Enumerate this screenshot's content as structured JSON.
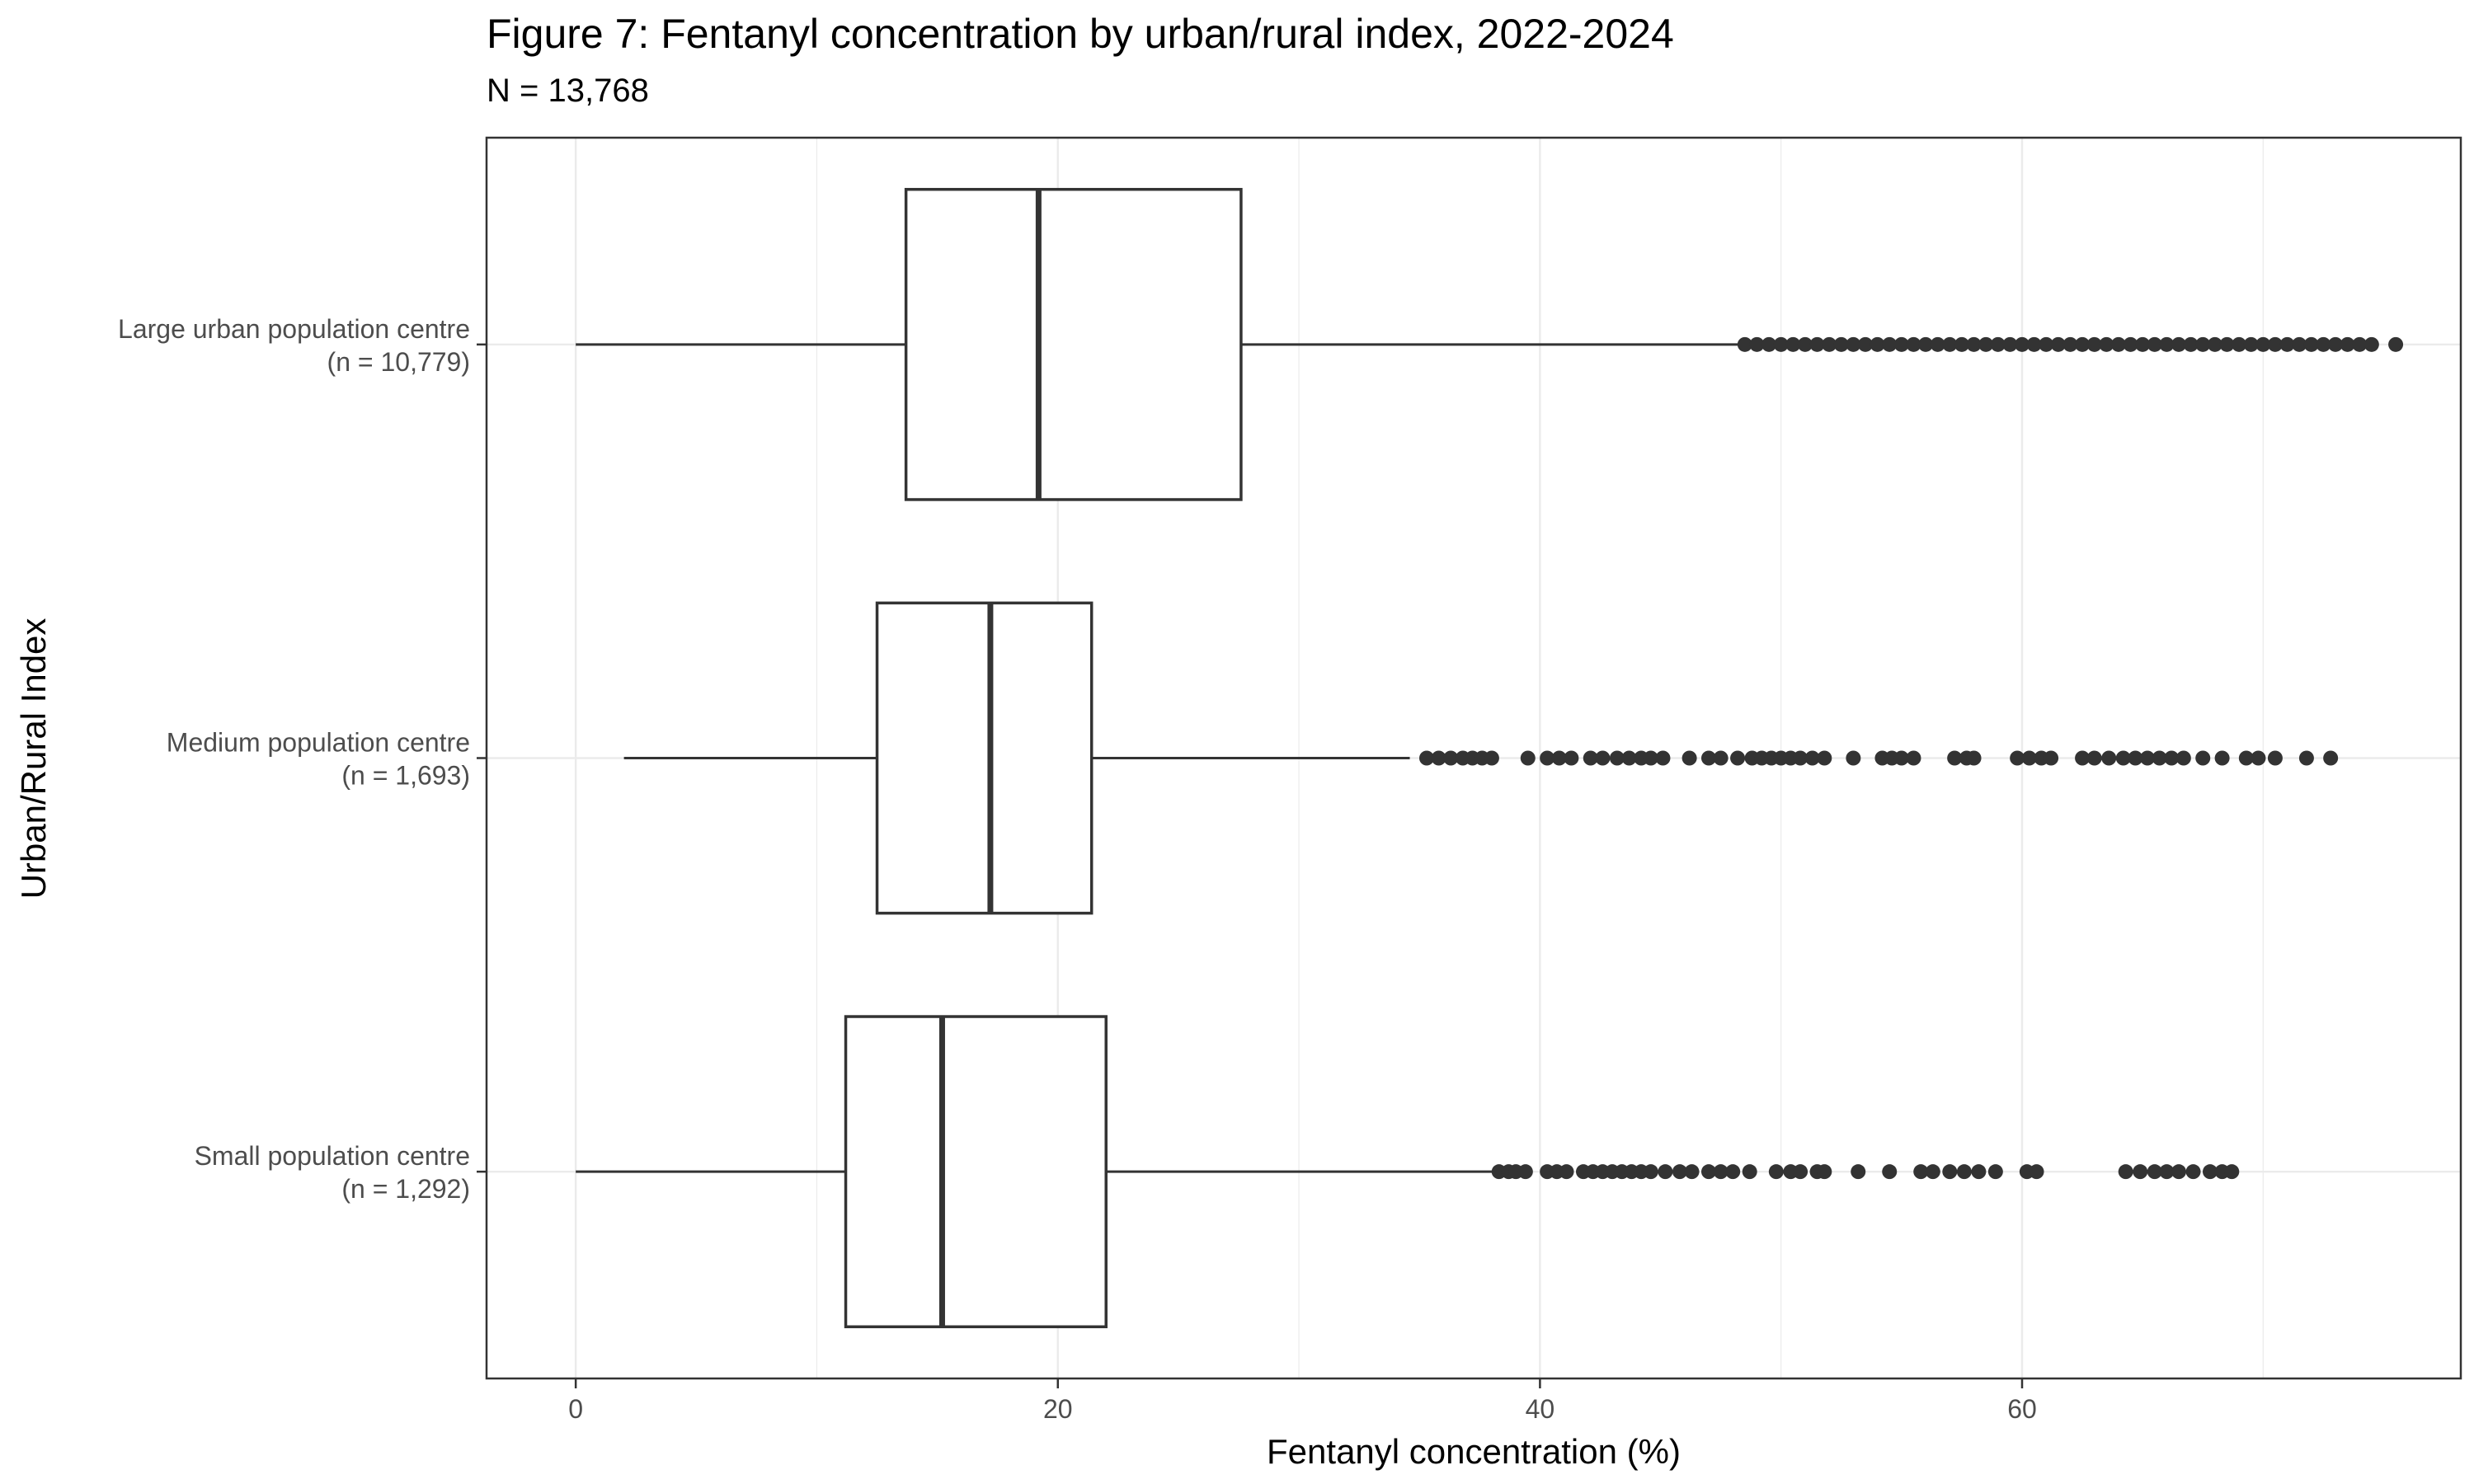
{
  "chart_data": {
    "type": "boxplot",
    "orientation": "horizontal",
    "title": "Figure 7: Fentanyl concentration by urban/rural index, 2022-2024",
    "subtitle": "N = 13,768",
    "xlabel": "Fentanyl concentration (%)",
    "ylabel": "Urban/Rural Index",
    "xlim": [
      -3.7,
      78.2
    ],
    "x_ticks": [
      0,
      20,
      40,
      60
    ],
    "x_tick_labels": [
      "0",
      "20",
      "40",
      "60"
    ],
    "grid": true,
    "groups": [
      {
        "label_line1": "Large urban population centre",
        "label_line2": "(n = 10,779)",
        "whisker_low": 0,
        "q1": 13.7,
        "median": 19.2,
        "q3": 27.6,
        "whisker_high": 48.4,
        "outliers": [
          48.5,
          49.0,
          49.5,
          50.0,
          50.5,
          51.0,
          51.5,
          52.0,
          52.5,
          53.0,
          53.5,
          54.0,
          54.5,
          55.0,
          55.5,
          56.0,
          56.5,
          57.0,
          57.5,
          58.0,
          58.5,
          59.0,
          59.5,
          60.0,
          60.5,
          61.0,
          61.5,
          62.0,
          62.5,
          63.0,
          63.5,
          64.0,
          64.5,
          65.0,
          65.5,
          66.0,
          66.5,
          67.0,
          67.5,
          68.0,
          68.5,
          69.0,
          69.5,
          70.0,
          70.5,
          71.0,
          71.5,
          72.0,
          72.5,
          73.0,
          73.5,
          74.0,
          74.5,
          75.5
        ]
      },
      {
        "label_line1": "Medium population centre",
        "label_line2": "(n = 1,693)",
        "whisker_low": 2.0,
        "q1": 12.5,
        "median": 17.2,
        "q3": 21.4,
        "whisker_high": 34.6,
        "outliers": [
          35.3,
          35.8,
          36.3,
          36.8,
          37.2,
          37.6,
          38.0,
          39.5,
          40.3,
          40.8,
          41.3,
          42.1,
          42.6,
          43.2,
          43.7,
          44.2,
          44.6,
          45.1,
          46.2,
          47.0,
          47.5,
          48.2,
          48.8,
          49.2,
          49.6,
          50.0,
          50.4,
          50.8,
          51.3,
          51.8,
          53.0,
          54.2,
          54.6,
          55.0,
          55.5,
          57.2,
          57.7,
          58.0,
          59.8,
          60.3,
          60.8,
          61.2,
          62.5,
          63.0,
          63.6,
          64.2,
          64.7,
          65.2,
          65.7,
          66.2,
          66.7,
          67.5,
          68.3,
          69.3,
          69.8,
          70.5,
          71.8,
          72.8
        ]
      },
      {
        "label_line1": "Small population centre",
        "label_line2": "(n = 1,292)",
        "whisker_low": 0,
        "q1": 11.2,
        "median": 15.2,
        "q3": 22.0,
        "whisker_high": 38.2,
        "outliers": [
          38.3,
          38.7,
          39.0,
          39.4,
          40.3,
          40.7,
          41.1,
          41.8,
          42.2,
          42.6,
          43.0,
          43.4,
          43.8,
          44.2,
          44.6,
          45.2,
          45.8,
          46.3,
          47.0,
          47.5,
          48.0,
          48.7,
          49.8,
          50.4,
          50.8,
          51.5,
          51.8,
          53.2,
          54.5,
          55.8,
          56.3,
          57.0,
          57.6,
          58.2,
          58.9,
          60.2,
          60.6,
          64.3,
          64.9,
          65.5,
          66.0,
          66.5,
          67.1,
          67.8,
          68.3,
          68.7
        ]
      }
    ]
  }
}
